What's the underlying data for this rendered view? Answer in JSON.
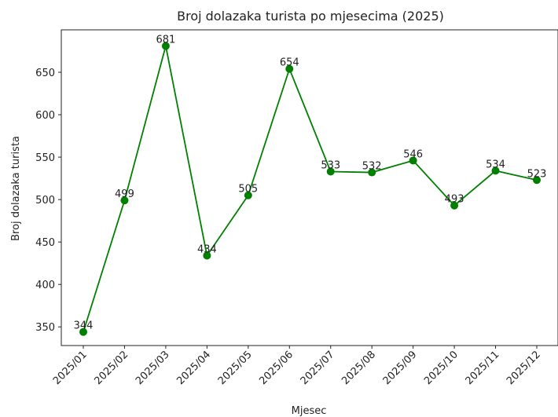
{
  "chart_data": {
    "type": "line",
    "title": "Broj dolazaka turista po mjesecima (2025)",
    "x_label": "Mjesec",
    "y_label": "Broj dolazaka turista",
    "categories": [
      "2025/01",
      "2025/02",
      "2025/03",
      "2025/04",
      "2025/05",
      "2025/06",
      "2025/07",
      "2025/08",
      "2025/09",
      "2025/10",
      "2025/11",
      "2025/12"
    ],
    "values": [
      344,
      499,
      681,
      434,
      505,
      654,
      533,
      532,
      546,
      493,
      534,
      523
    ],
    "color": "#008000",
    "ylim": [
      328,
      700
    ],
    "yticks": [
      350,
      400,
      450,
      500,
      550,
      600,
      650
    ]
  }
}
